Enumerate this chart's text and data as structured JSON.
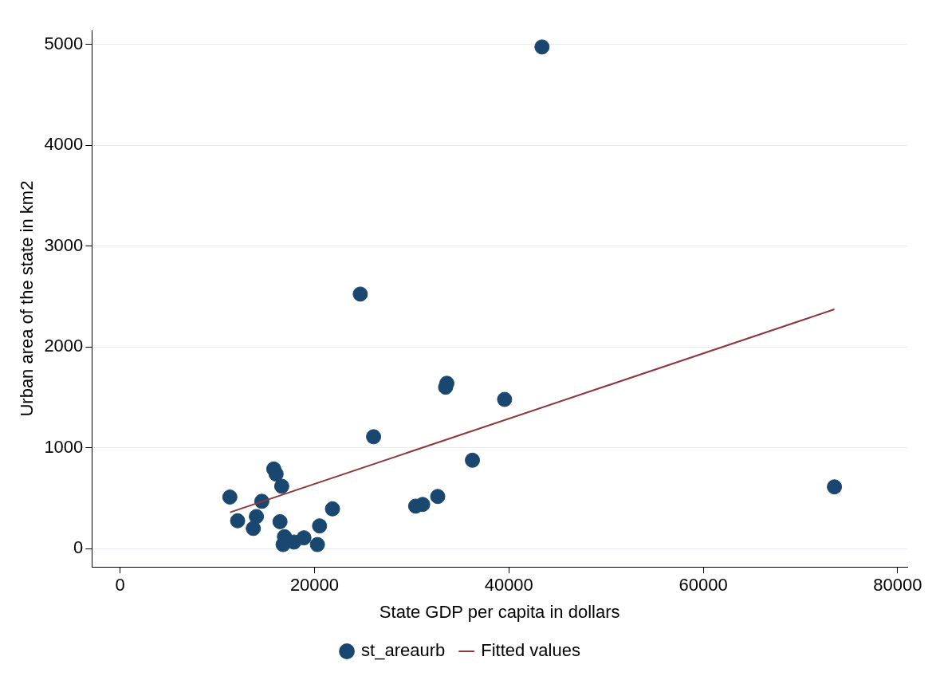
{
  "chart_data": {
    "type": "scatter",
    "xlabel": "State GDP per capita in dollars",
    "ylabel": "Urban area of the state in km2",
    "xlim": [
      -2900,
      81000
    ],
    "xticks": [
      0,
      20000,
      40000,
      60000,
      80000
    ],
    "ylim": [
      -180,
      5140
    ],
    "yticks": [
      0,
      1000,
      2000,
      3000,
      4000,
      5000
    ],
    "grid": "y",
    "legend": "bottom",
    "marker": "circle",
    "series": [
      {
        "name": "st_areaurb",
        "color": "#1a476f",
        "x": [
          11290,
          12090,
          13700,
          14020,
          14580,
          15810,
          16050,
          16630,
          16450,
          16910,
          16770,
          17890,
          18910,
          20300,
          20520,
          21850,
          24710,
          26080,
          33620,
          33490,
          39560,
          36250,
          32680,
          31130,
          30410,
          43410,
          73500
        ],
        "values": [
          513,
          278,
          202,
          320,
          471,
          791,
          741,
          620,
          269,
          120,
          42,
          67,
          109,
          42,
          227,
          396,
          2525,
          1111,
          1641,
          1602,
          1481,
          878,
          519,
          440,
          423,
          4975,
          614
        ]
      },
      {
        "name": "Fitted values",
        "type": "line",
        "color": "#90353b",
        "line_style": "solid",
        "marker": "none",
        "x": [
          11310,
          73500
        ],
        "values": [
          362,
          2374
        ]
      }
    ]
  }
}
